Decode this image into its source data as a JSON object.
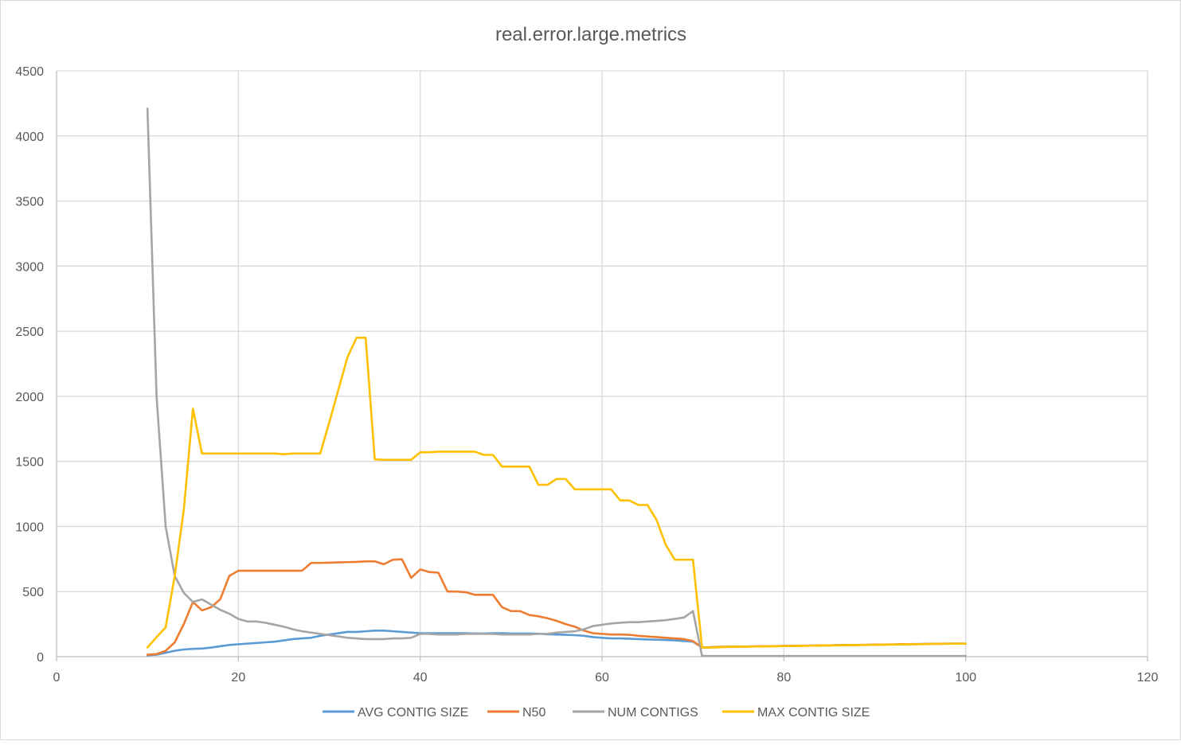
{
  "chart_data": {
    "type": "line",
    "title": "real.error.large.metrics",
    "xlabel": "",
    "ylabel": "",
    "xlim": [
      0,
      120
    ],
    "ylim": [
      0,
      4500
    ],
    "x_ticks": [
      0,
      20,
      40,
      60,
      80,
      100,
      120
    ],
    "y_ticks": [
      0,
      500,
      1000,
      1500,
      2000,
      2500,
      3000,
      3500,
      4000,
      4500
    ],
    "grid": true,
    "legend_position": "bottom",
    "x": [
      10,
      11,
      12,
      13,
      14,
      15,
      16,
      17,
      18,
      19,
      20,
      21,
      22,
      23,
      24,
      25,
      26,
      27,
      28,
      29,
      30,
      31,
      32,
      33,
      34,
      35,
      36,
      37,
      38,
      39,
      40,
      41,
      42,
      43,
      44,
      45,
      46,
      47,
      48,
      49,
      50,
      51,
      52,
      53,
      54,
      55,
      56,
      57,
      58,
      59,
      60,
      61,
      62,
      63,
      64,
      65,
      66,
      67,
      68,
      69,
      70,
      71,
      72,
      73,
      74,
      75,
      76,
      77,
      78,
      79,
      80,
      81,
      82,
      83,
      84,
      85,
      86,
      87,
      88,
      89,
      90,
      91,
      92,
      93,
      94,
      95,
      96,
      97,
      98,
      99,
      100
    ],
    "series": [
      {
        "name": "AVG CONTIG SIZE",
        "color": "#5b9bd5",
        "values": [
          10,
          15,
          30,
          45,
          55,
          60,
          62,
          70,
          80,
          90,
          95,
          100,
          105,
          110,
          115,
          125,
          135,
          140,
          145,
          160,
          170,
          180,
          190,
          190,
          195,
          200,
          200,
          195,
          190,
          185,
          180,
          180,
          180,
          180,
          180,
          180,
          178,
          178,
          180,
          180,
          178,
          178,
          178,
          176,
          172,
          170,
          168,
          165,
          160,
          150,
          145,
          140,
          140,
          138,
          135,
          132,
          130,
          128,
          125,
          120,
          115,
          70,
          72,
          75,
          76,
          77,
          78,
          79,
          80,
          81,
          82,
          83,
          84,
          85,
          86,
          87,
          88,
          89,
          90,
          91,
          92,
          93,
          94,
          95,
          96,
          97,
          98,
          99,
          100,
          100,
          100
        ]
      },
      {
        "name": "N50",
        "color": "#ed7d31",
        "values": [
          15,
          20,
          45,
          110,
          250,
          420,
          355,
          380,
          440,
          620,
          660,
          660,
          660,
          660,
          660,
          660,
          660,
          660,
          720,
          720,
          722,
          724,
          726,
          728,
          732,
          732,
          710,
          745,
          748,
          605,
          670,
          650,
          645,
          500,
          500,
          495,
          475,
          475,
          475,
          380,
          350,
          350,
          320,
          310,
          295,
          275,
          250,
          230,
          200,
          180,
          175,
          170,
          170,
          168,
          160,
          155,
          150,
          145,
          140,
          135,
          120,
          70,
          72,
          75,
          76,
          77,
          78,
          79,
          80,
          81,
          82,
          83,
          84,
          85,
          86,
          87,
          88,
          89,
          90,
          91,
          92,
          93,
          94,
          95,
          96,
          97,
          98,
          99,
          100,
          100,
          100
        ]
      },
      {
        "name": "NUM CONTIGS",
        "color": "#a5a5a5",
        "values": [
          4210,
          2000,
          1000,
          620,
          490,
          420,
          440,
          400,
          360,
          330,
          290,
          270,
          270,
          260,
          245,
          230,
          210,
          195,
          185,
          175,
          165,
          155,
          145,
          140,
          135,
          135,
          135,
          140,
          140,
          145,
          175,
          175,
          170,
          170,
          170,
          175,
          175,
          175,
          175,
          170,
          170,
          170,
          170,
          175,
          175,
          185,
          190,
          195,
          210,
          235,
          245,
          255,
          260,
          265,
          265,
          270,
          275,
          280,
          290,
          300,
          350,
          5,
          5,
          5,
          5,
          5,
          5,
          5,
          5,
          5,
          5,
          5,
          5,
          5,
          5,
          5,
          5,
          5,
          5,
          5,
          5,
          5,
          5,
          5,
          5,
          5,
          5,
          5,
          5,
          5,
          5
        ]
      },
      {
        "name": "MAX CONTIG SIZE",
        "color": "#ffc000",
        "values": [
          70,
          150,
          225,
          620,
          1130,
          1905,
          1560,
          1560,
          1560,
          1560,
          1560,
          1560,
          1560,
          1560,
          1560,
          1555,
          1560,
          1560,
          1560,
          1560,
          1800,
          2050,
          2300,
          2450,
          2450,
          1515,
          1512,
          1512,
          1512,
          1512,
          1570,
          1570,
          1575,
          1575,
          1575,
          1575,
          1575,
          1550,
          1550,
          1460,
          1460,
          1460,
          1460,
          1320,
          1320,
          1365,
          1365,
          1285,
          1285,
          1285,
          1285,
          1285,
          1200,
          1200,
          1165,
          1165,
          1050,
          860,
          745,
          745,
          745,
          70,
          70,
          72,
          75,
          76,
          77,
          78,
          79,
          80,
          81,
          82,
          83,
          84,
          85,
          86,
          87,
          88,
          89,
          90,
          91,
          92,
          93,
          94,
          95,
          96,
          97,
          98,
          99,
          100,
          100
        ]
      }
    ]
  }
}
